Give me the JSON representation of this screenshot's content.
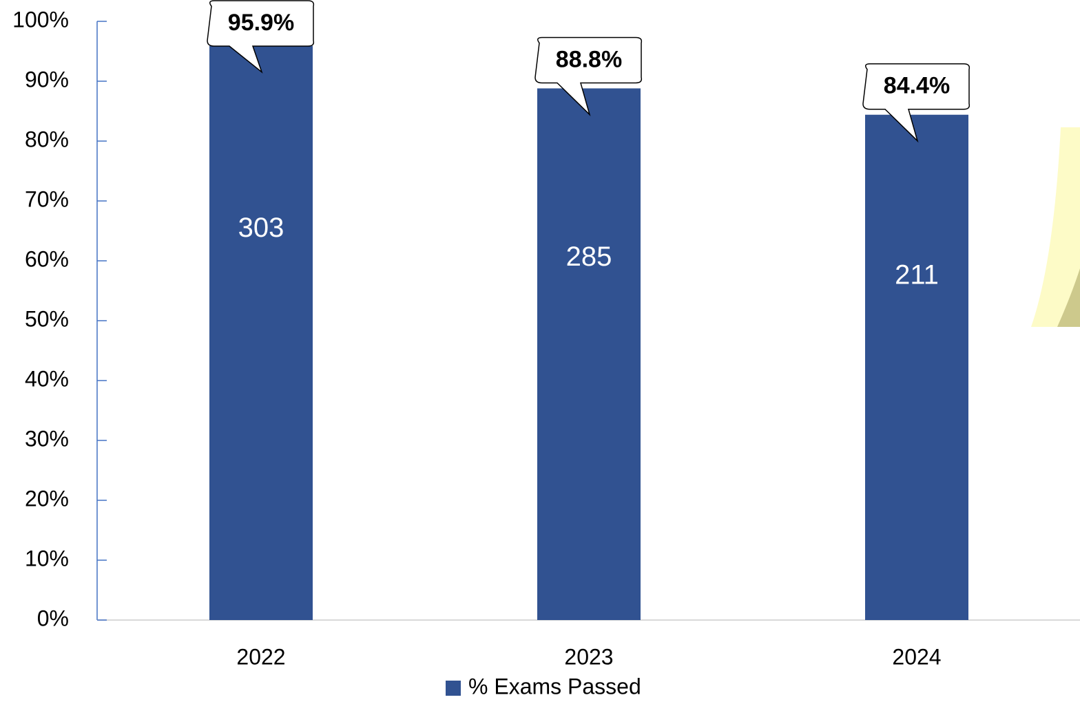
{
  "chart_data": {
    "type": "bar",
    "categories": [
      "2022",
      "2023",
      "2024"
    ],
    "series": [
      {
        "name": "% Exams Passed",
        "color": "#315291",
        "values": [
          95.9,
          88.8,
          84.4
        ],
        "value_labels": [
          "95.9%",
          "88.8%",
          "84.4%"
        ],
        "counts": [
          303,
          285,
          211
        ]
      }
    ],
    "ylim": [
      0,
      100
    ],
    "yticks": [
      {
        "value": 0,
        "label": "0%"
      },
      {
        "value": 10,
        "label": "10%"
      },
      {
        "value": 20,
        "label": "20%"
      },
      {
        "value": 30,
        "label": "30%"
      },
      {
        "value": 40,
        "label": "40%"
      },
      {
        "value": 50,
        "label": "50%"
      },
      {
        "value": 60,
        "label": "60%"
      },
      {
        "value": 70,
        "label": "70%"
      },
      {
        "value": 80,
        "label": "80%"
      },
      {
        "value": 90,
        "label": "90%"
      },
      {
        "value": 100,
        "label": "100%"
      }
    ],
    "legend": "bottom"
  }
}
